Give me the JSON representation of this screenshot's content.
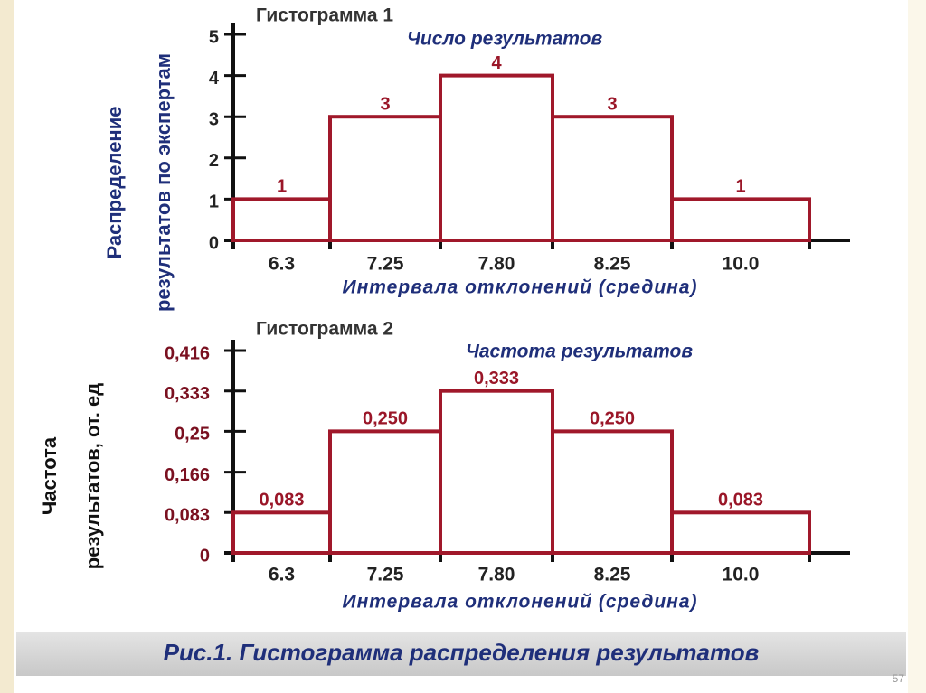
{
  "chart_data": [
    {
      "type": "bar",
      "title": "Гистограмма 1",
      "subtitle": "Число результатов",
      "y_label": [
        "Распределение",
        "результатов по экспертам"
      ],
      "x_label": "Интервала отклонений (средина)",
      "categories": [
        "6.3",
        "7.25",
        "7.80",
        "8.25",
        "10.0"
      ],
      "values": [
        1,
        3,
        4,
        3,
        1
      ],
      "color": "#a0182a",
      "ylim": [
        0,
        5
      ],
      "yticks": [
        0,
        1,
        2,
        3,
        4,
        5
      ]
    },
    {
      "type": "bar",
      "title": "Гистограмма 2",
      "subtitle": "Частота результатов",
      "y_label": [
        "Частота",
        "результатов, от. ед"
      ],
      "x_label": "Интервала отклонений (средина)",
      "categories": [
        "6.3",
        "7.25",
        "7.80",
        "8.25",
        "10.0"
      ],
      "values": [
        0.083,
        0.25,
        0.333,
        0.25,
        0.083
      ],
      "value_labels": [
        "0,083",
        "0,250",
        "0,333",
        "0,250",
        "0,083"
      ],
      "color": "#a0182a",
      "ylim": [
        0,
        0.416
      ],
      "yticks": [
        0,
        {
          "value": 0.083,
          "label": "0,083"
        },
        {
          "value": 0.166,
          "label": "0,166"
        },
        {
          "value": 0.25,
          "label": "0,25"
        },
        {
          "value": 0.333,
          "label": "0,333"
        },
        {
          "value": 0.416,
          "label": "0,416"
        }
      ]
    }
  ],
  "caption": "Рис.1. Гистограмма распределения результатов",
  "page_number": "57"
}
